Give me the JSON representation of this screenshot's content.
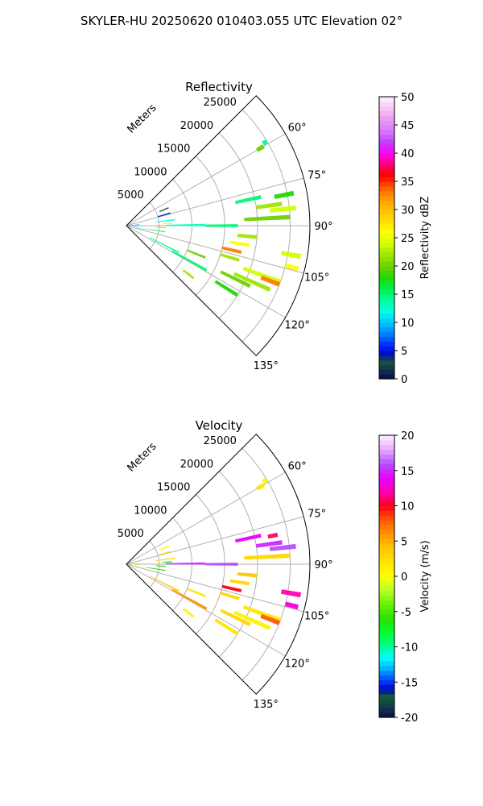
{
  "figure": {
    "title": "SKYLER-HU  20250620  010403.055 UTC Elevation 02°"
  },
  "chart_data": [
    {
      "type": "radar_sector",
      "title": "Reflectivity",
      "range_label": "Meters",
      "range_ticks": [
        5000,
        10000,
        15000,
        20000,
        25000
      ],
      "range_max": 28000,
      "azimuth_range": [
        45,
        135
      ],
      "azimuth_ticks": [
        60,
        75,
        90,
        105,
        120,
        135
      ],
      "colorbar": {
        "label": "Reflectivity dBZ",
        "min": 0,
        "max": 50,
        "ticks": [
          0,
          5,
          10,
          15,
          20,
          25,
          30,
          35,
          40,
          45,
          50
        ]
      },
      "echoes": [
        {
          "az": 59,
          "r": [
            24300,
            25000
          ],
          "value": 14
        },
        {
          "az": 60,
          "r": [
            23000,
            24200
          ],
          "value": 20
        },
        {
          "az": 78,
          "r": [
            17000,
            21000
          ],
          "value": 15
        },
        {
          "az": 79,
          "r": [
            23000,
            26000
          ],
          "value": 18
        },
        {
          "az": 82,
          "r": [
            20000,
            24000
          ],
          "value": 22
        },
        {
          "az": 84,
          "r": [
            22000,
            26000
          ],
          "value": 24
        },
        {
          "az": 87,
          "r": [
            18000,
            25000
          ],
          "value": 20
        },
        {
          "az": 90,
          "r": [
            12000,
            17000
          ],
          "value": 15
        },
        {
          "az": 89.5,
          "r": [
            6000,
            12000
          ],
          "value": 13
        },
        {
          "az": 95,
          "r": [
            17000,
            20000
          ],
          "value": 22
        },
        {
          "az": 99,
          "r": [
            16000,
            19000
          ],
          "value": 26
        },
        {
          "az": 103,
          "r": [
            15000,
            18000
          ],
          "value": 33
        },
        {
          "az": 100,
          "r": [
            24000,
            27000
          ],
          "value": 24
        },
        {
          "az": 104,
          "r": [
            25000,
            27000
          ],
          "value": 26
        },
        {
          "az": 107,
          "r": [
            15000,
            18000
          ],
          "value": 22
        },
        {
          "az": 110,
          "r": [
            19000,
            25000
          ],
          "value": 24
        },
        {
          "az": 111,
          "r": [
            22000,
            25000
          ],
          "value": 33
        },
        {
          "az": 114,
          "r": [
            18000,
            24000
          ],
          "value": 22
        },
        {
          "az": 116,
          "r": [
            16000,
            21000
          ],
          "value": 20
        },
        {
          "az": 122,
          "r": [
            16000,
            20000
          ],
          "value": 18
        },
        {
          "az": 128,
          "r": [
            11000,
            13000
          ],
          "value": 22
        },
        {
          "az": 117,
          "r": [
            4000,
            9000
          ],
          "value": 14
        },
        {
          "az": 119,
          "r": [
            8000,
            14000
          ],
          "value": 15
        },
        {
          "az": 112,
          "r": [
            10000,
            13000
          ],
          "value": 20
        },
        {
          "az": 99,
          "r": [
            3000,
            6000
          ],
          "value": 14
        },
        {
          "az": 85,
          "r": [
            300,
            2000
          ],
          "value": 7
        },
        {
          "az": 93,
          "r": [
            300,
            2000
          ],
          "value": 10
        },
        {
          "az": 102,
          "r": [
            500,
            3000
          ],
          "value": 12
        },
        {
          "az": 93,
          "r": [
            4500,
            6000
          ],
          "value": 30
        },
        {
          "az": 87,
          "r": [
            5500,
            7000
          ],
          "value": 25
        },
        {
          "az": 74,
          "r": [
            5000,
            7000
          ],
          "value": 5
        },
        {
          "az": 67,
          "r": [
            5500,
            7000
          ],
          "value": 3
        },
        {
          "az": 83,
          "r": [
            4500,
            7500
          ],
          "value": 12
        }
      ]
    },
    {
      "type": "radar_sector",
      "title": "Velocity",
      "range_label": "Meters",
      "range_ticks": [
        5000,
        10000,
        15000,
        20000,
        25000
      ],
      "range_max": 28000,
      "azimuth_range": [
        45,
        135
      ],
      "azimuth_ticks": [
        60,
        75,
        90,
        105,
        120,
        135
      ],
      "colorbar": {
        "label": "Velocity (m/s)",
        "min": -20,
        "max": 20,
        "ticks": [
          -20,
          -15,
          -10,
          -5,
          0,
          5,
          10,
          15,
          20
        ]
      },
      "echoes": [
        {
          "az": 59,
          "r": [
            24300,
            25000
          ],
          "value": 1
        },
        {
          "az": 60,
          "r": [
            23000,
            24200
          ],
          "value": 2
        },
        {
          "az": 78,
          "r": [
            17000,
            21000
          ],
          "value": 14
        },
        {
          "az": 79,
          "r": [
            22000,
            23500
          ],
          "value": 11
        },
        {
          "az": 82,
          "r": [
            20000,
            24000
          ],
          "value": 15
        },
        {
          "az": 84,
          "r": [
            22000,
            26000
          ],
          "value": 16
        },
        {
          "az": 87,
          "r": [
            18000,
            25000
          ],
          "value": 3
        },
        {
          "az": 90,
          "r": [
            12000,
            17000
          ],
          "value": 16
        },
        {
          "az": 89.5,
          "r": [
            6000,
            12000
          ],
          "value": 15
        },
        {
          "az": 95,
          "r": [
            17000,
            20000
          ],
          "value": 4
        },
        {
          "az": 99,
          "r": [
            16000,
            19000
          ],
          "value": 3
        },
        {
          "az": 103,
          "r": [
            15000,
            18000
          ],
          "value": 10
        },
        {
          "az": 100,
          "r": [
            24000,
            27000
          ],
          "value": 12
        },
        {
          "az": 104,
          "r": [
            25000,
            27000
          ],
          "value": 13
        },
        {
          "az": 107,
          "r": [
            15000,
            18000
          ],
          "value": 3
        },
        {
          "az": 110,
          "r": [
            19000,
            25000
          ],
          "value": 2
        },
        {
          "az": 111,
          "r": [
            22000,
            25000
          ],
          "value": 8
        },
        {
          "az": 114,
          "r": [
            18000,
            24000
          ],
          "value": 1
        },
        {
          "az": 116,
          "r": [
            16000,
            21000
          ],
          "value": 3
        },
        {
          "az": 122,
          "r": [
            16000,
            20000
          ],
          "value": 2
        },
        {
          "az": 128,
          "r": [
            11000,
            13000
          ],
          "value": 1
        },
        {
          "az": 117,
          "r": [
            4000,
            9000
          ],
          "value": 4
        },
        {
          "az": 119,
          "r": [
            8000,
            14000
          ],
          "value": 6
        },
        {
          "az": 112,
          "r": [
            10000,
            13000
          ],
          "value": 2
        },
        {
          "az": 99,
          "r": [
            3000,
            6000
          ],
          "value": -6
        },
        {
          "az": 85,
          "r": [
            300,
            2000
          ],
          "value": -1
        },
        {
          "az": 93,
          "r": [
            300,
            2000
          ],
          "value": 1
        },
        {
          "az": 102,
          "r": [
            500,
            3000
          ],
          "value": 0
        },
        {
          "az": 93,
          "r": [
            4500,
            6000
          ],
          "value": -6
        },
        {
          "az": 87,
          "r": [
            5500,
            7000
          ],
          "value": -7
        },
        {
          "az": 74,
          "r": [
            5000,
            7000
          ],
          "value": 2
        },
        {
          "az": 67,
          "r": [
            5500,
            7000
          ],
          "value": 1
        },
        {
          "az": 83,
          "r": [
            4500,
            7500
          ],
          "value": 3
        }
      ]
    }
  ]
}
